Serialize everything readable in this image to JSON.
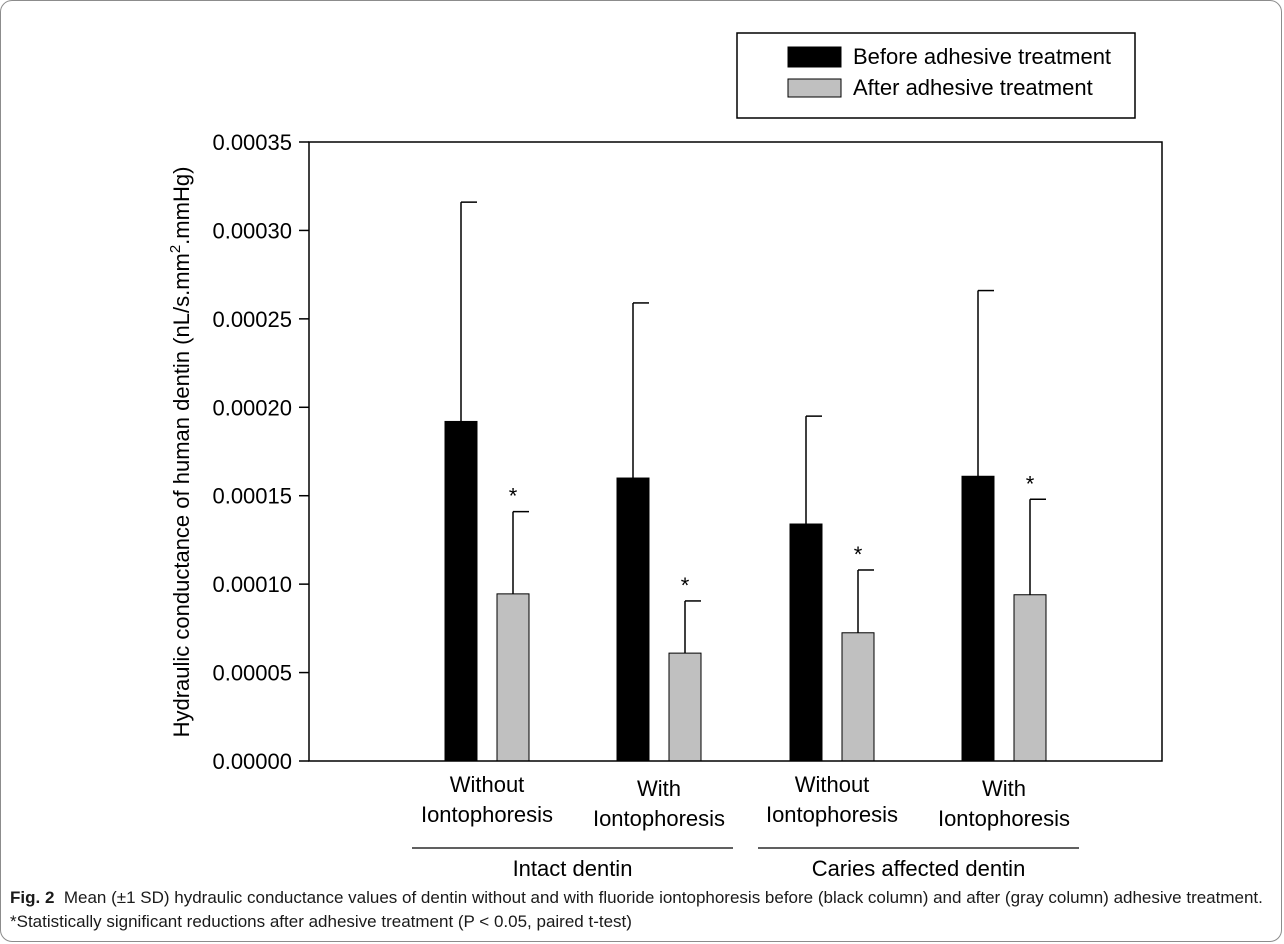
{
  "chart_data": {
    "type": "bar",
    "categories": [
      "Without\nIontophoresis",
      "With\nIontophoresis",
      "Without\nIontophoresis",
      "With\nIontophoresis"
    ],
    "groups": [
      {
        "label": "Intact dentin",
        "categories": [
          0,
          1
        ]
      },
      {
        "label": "Caries affected dentin",
        "categories": [
          2,
          3
        ]
      }
    ],
    "series": [
      {
        "name": "Before adhesive treatment",
        "color": "#000000",
        "values": [
          0.000192,
          0.00016,
          0.000134,
          0.000161
        ],
        "error": [
          0.000124,
          9.9e-05,
          6.1e-05,
          0.000105
        ],
        "significant": [
          false,
          false,
          false,
          false
        ]
      },
      {
        "name": "After adhesive treatment",
        "color": "#c0c0c0",
        "values": [
          9.45e-05,
          6.1e-05,
          7.25e-05,
          9.4e-05
        ],
        "error": [
          4.65e-05,
          2.95e-05,
          3.55e-05,
          5.4e-05
        ],
        "significant": [
          true,
          true,
          true,
          true
        ]
      }
    ],
    "significance_marker": "*",
    "ylabel": "Hydraulic conductance of human dentin (nL/s.mm².mmHg)",
    "ylabel_main": "Hydraulic conductance of human dentin (nL/s.mm",
    "ylabel_sup": "2",
    "ylabel_tail": ".mmHg)",
    "ylim": [
      0,
      0.00035
    ],
    "yticks": [
      "0.00000",
      "0.00005",
      "0.00010",
      "0.00015",
      "0.00020",
      "0.00025",
      "0.00030",
      "0.00035"
    ],
    "ytick_values": [
      0,
      5e-05,
      0.0001,
      0.00015,
      0.0002,
      0.00025,
      0.0003,
      0.00035
    ],
    "legend_position": "top-right",
    "grid": false
  },
  "caption": {
    "label": "Fig. 2",
    "text": "Mean (±1 SD) hydraulic conductance values of dentin without and with fluoride iontophoresis before (black column) and after (gray column) adhesive treatment. *Statistically significant reductions after adhesive treatment (P < 0.05, paired t-test)"
  }
}
